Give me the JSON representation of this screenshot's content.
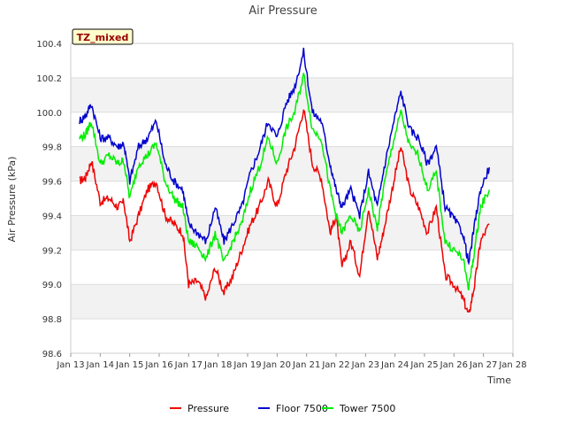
{
  "chart_data": {
    "type": "line",
    "title": "Air Pressure",
    "xlabel": "Time",
    "ylabel": "Air Pressure (kPa)",
    "badge": "TZ_mixed",
    "xlim": [
      13,
      28
    ],
    "ylim": [
      98.6,
      100.4
    ],
    "x_ticks": [
      "Jan 13",
      "Jan 14",
      "Jan 15",
      "Jan 16",
      "Jan 17",
      "Jan 18",
      "Jan 19",
      "Jan 20",
      "Jan 21",
      "Jan 22",
      "Jan 23",
      "Jan 24",
      "Jan 25",
      "Jan 26",
      "Jan 27",
      "Jan 28"
    ],
    "y_ticks": [
      "98.6",
      "98.8",
      "99.0",
      "99.2",
      "99.4",
      "99.6",
      "99.8",
      "100.0",
      "100.2",
      "100.4"
    ],
    "legend_position": "bottom-center",
    "x": [
      13.3,
      13.5,
      13.7,
      14.0,
      14.3,
      14.6,
      14.8,
      15.0,
      15.3,
      15.6,
      15.9,
      16.2,
      16.5,
      16.8,
      17.0,
      17.3,
      17.6,
      17.9,
      18.2,
      18.5,
      18.8,
      19.1,
      19.4,
      19.7,
      20.0,
      20.3,
      20.6,
      20.9,
      21.2,
      21.5,
      21.8,
      22.0,
      22.2,
      22.5,
      22.8,
      23.1,
      23.4,
      23.6,
      23.9,
      24.2,
      24.5,
      24.8,
      25.1,
      25.4,
      25.7,
      26.0,
      26.3,
      26.5,
      26.7,
      26.9,
      27.2
    ],
    "series": [
      {
        "name": "Pressure",
        "color": "#ee0000",
        "values": [
          99.6,
          99.62,
          99.72,
          99.48,
          99.5,
          99.45,
          99.48,
          99.25,
          99.4,
          99.55,
          99.6,
          99.4,
          99.35,
          99.3,
          99.0,
          99.02,
          98.92,
          99.1,
          98.95,
          99.05,
          99.2,
          99.35,
          99.45,
          99.6,
          99.45,
          99.65,
          99.8,
          100.02,
          99.7,
          99.62,
          99.3,
          99.4,
          99.1,
          99.25,
          99.05,
          99.45,
          99.15,
          99.3,
          99.55,
          99.8,
          99.55,
          99.45,
          99.3,
          99.45,
          99.05,
          99.0,
          98.92,
          98.82,
          99.0,
          99.25,
          99.35
        ]
      },
      {
        "name": "Floor 7500",
        "color": "#0000cc",
        "values": [
          99.95,
          99.98,
          100.05,
          99.85,
          99.85,
          99.8,
          99.82,
          99.6,
          99.8,
          99.85,
          99.95,
          99.7,
          99.6,
          99.55,
          99.35,
          99.3,
          99.25,
          99.45,
          99.25,
          99.35,
          99.45,
          99.65,
          99.78,
          99.95,
          99.85,
          100.05,
          100.15,
          100.35,
          100.0,
          99.95,
          99.7,
          99.55,
          99.45,
          99.55,
          99.4,
          99.65,
          99.45,
          99.65,
          99.9,
          100.12,
          99.9,
          99.85,
          99.7,
          99.8,
          99.45,
          99.38,
          99.3,
          99.12,
          99.35,
          99.55,
          99.68
        ]
      },
      {
        "name": "Tower 7500",
        "color": "#00ee00",
        "values": [
          99.85,
          99.87,
          99.95,
          99.7,
          99.75,
          99.7,
          99.72,
          99.5,
          99.7,
          99.75,
          99.82,
          99.6,
          99.5,
          99.45,
          99.25,
          99.22,
          99.15,
          99.3,
          99.12,
          99.25,
          99.35,
          99.55,
          99.68,
          99.85,
          99.7,
          99.9,
          100.0,
          100.22,
          99.9,
          99.85,
          99.55,
          99.4,
          99.3,
          99.4,
          99.3,
          99.55,
          99.32,
          99.55,
          99.8,
          100.0,
          99.8,
          99.75,
          99.55,
          99.65,
          99.25,
          99.2,
          99.15,
          98.98,
          99.2,
          99.45,
          99.55
        ]
      }
    ]
  }
}
